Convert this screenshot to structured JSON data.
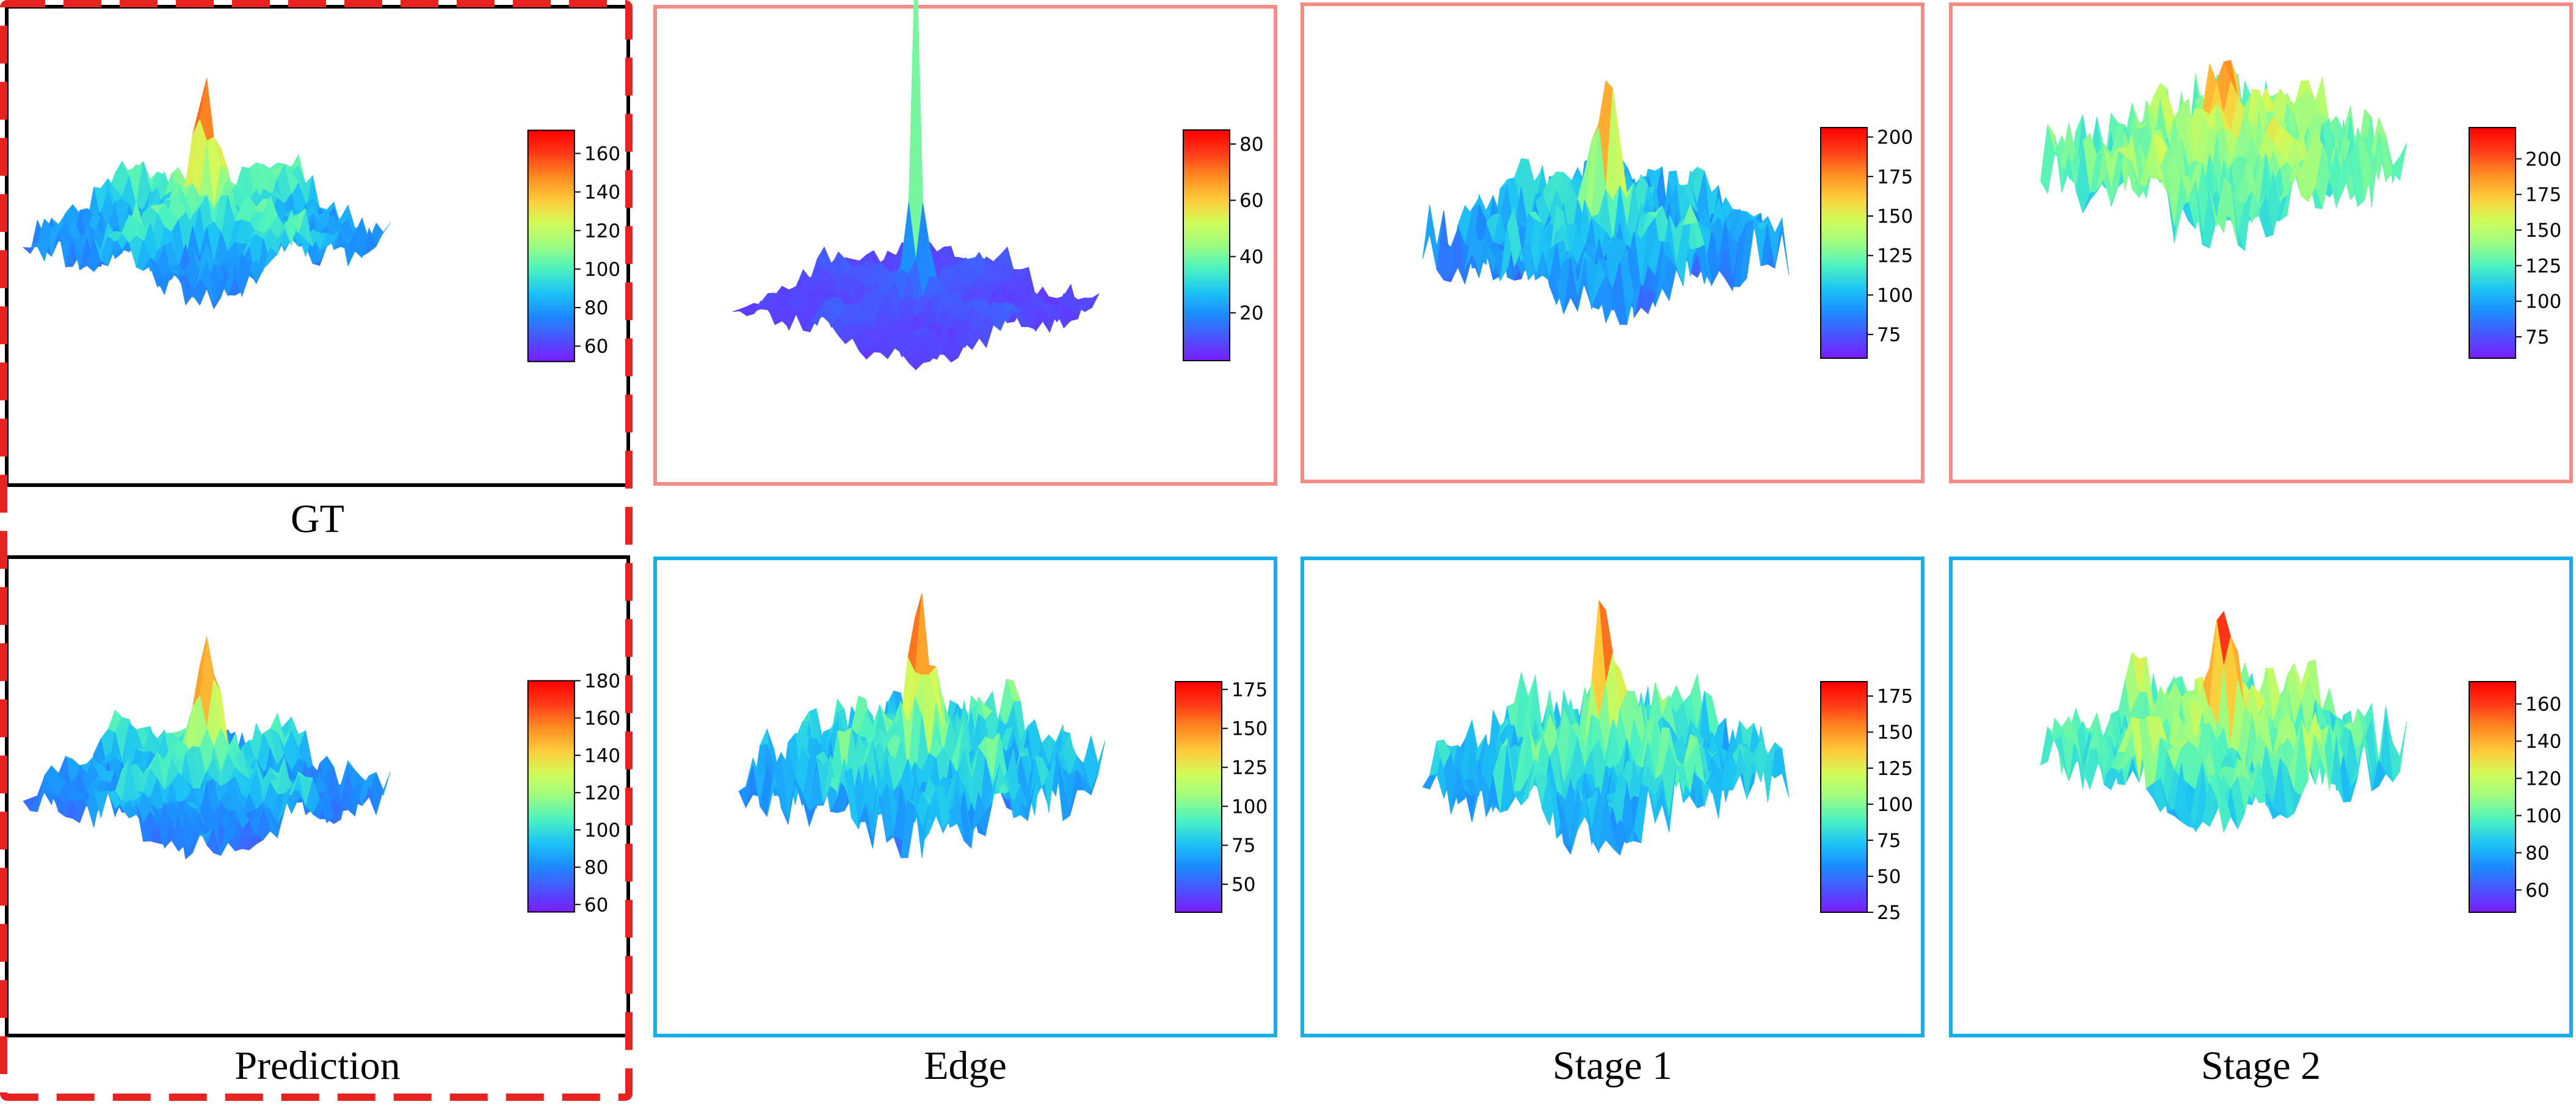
{
  "colors": {
    "pink_frame": "#f28c84",
    "blue_frame": "#19aee8",
    "black_frame": "#000000",
    "dash_red": "#e8221e"
  },
  "labels": [
    "GT",
    "Prediction",
    "Edge",
    "Stage 1",
    "Stage 2"
  ],
  "chart_data": [
    {
      "type": "surface3d",
      "row": "top",
      "column": "GT",
      "colormap": "rainbow",
      "colorbar": {
        "min": 52,
        "max": 172,
        "ticks": [
          60,
          80,
          100,
          120,
          140,
          160
        ]
      },
      "peak": {
        "value": 172,
        "position": "center"
      }
    },
    {
      "type": "surface3d",
      "row": "top",
      "column": "Edge",
      "colormap": "rainbow",
      "colorbar": {
        "min": 3,
        "max": 85,
        "ticks": [
          20,
          40,
          60,
          80
        ]
      },
      "peak": {
        "value": 85,
        "position": "center"
      }
    },
    {
      "type": "surface3d",
      "row": "top",
      "column": "Stage 1",
      "colormap": "rainbow",
      "colorbar": {
        "min": 60,
        "max": 206,
        "ticks": [
          75,
          100,
          125,
          150,
          175,
          200
        ]
      },
      "peak": {
        "value": 206,
        "position": "center"
      }
    },
    {
      "type": "surface3d",
      "row": "top",
      "column": "Stage 2",
      "colormap": "rainbow",
      "colorbar": {
        "min": 60,
        "max": 222,
        "ticks": [
          75,
          100,
          125,
          150,
          175,
          200
        ]
      },
      "peak": {
        "value": 222,
        "position": "center"
      }
    },
    {
      "type": "surface3d",
      "row": "bottom",
      "column": "Prediction",
      "colormap": "rainbow",
      "colorbar": {
        "min": 56,
        "max": 180,
        "ticks": [
          60,
          80,
          100,
          120,
          140,
          160,
          180
        ]
      },
      "peak": {
        "value": 180,
        "position": "center"
      }
    },
    {
      "type": "surface3d",
      "row": "bottom",
      "column": "Edge",
      "colormap": "rainbow",
      "colorbar": {
        "min": 32,
        "max": 180,
        "ticks": [
          50,
          75,
          100,
          125,
          150,
          175
        ]
      },
      "peak": {
        "value": 180,
        "position": "center"
      }
    },
    {
      "type": "surface3d",
      "row": "bottom",
      "column": "Stage 1",
      "colormap": "rainbow",
      "colorbar": {
        "min": 25,
        "max": 185,
        "ticks": [
          25,
          50,
          75,
          100,
          125,
          150,
          175
        ]
      },
      "peak": {
        "value": 185,
        "position": "center"
      }
    },
    {
      "type": "surface3d",
      "row": "bottom",
      "column": "Stage 2",
      "colormap": "rainbow",
      "colorbar": {
        "min": 48,
        "max": 172,
        "ticks": [
          60,
          80,
          100,
          120,
          140,
          160
        ]
      },
      "peak": {
        "value": 172,
        "position": "center"
      }
    }
  ]
}
